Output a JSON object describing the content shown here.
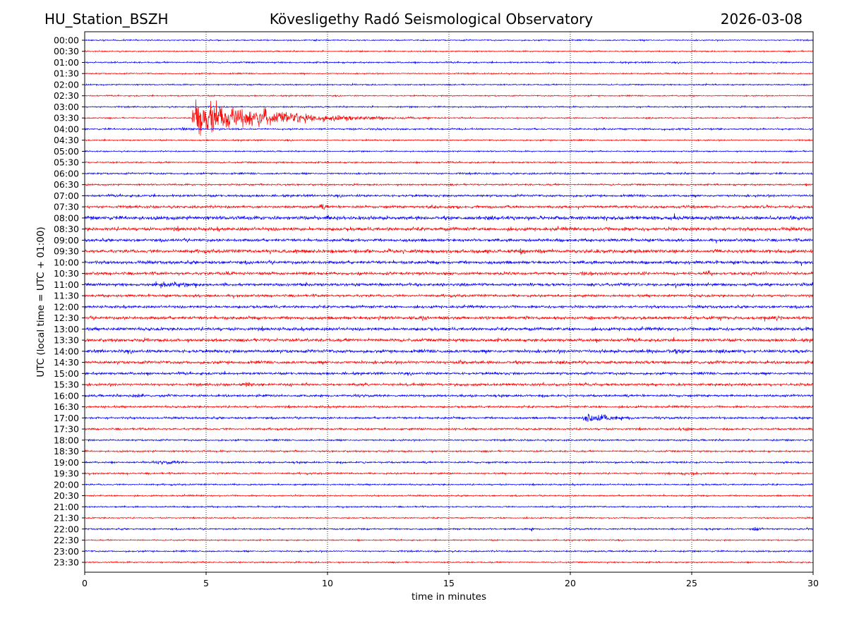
{
  "header": {
    "station": "HU_Station_BSZH",
    "observatory": "Kövesligethy Radó Seismological Observatory",
    "date": "2026-03-08"
  },
  "chart_data": {
    "type": "line",
    "subtype": "helicorder",
    "xlabel": "time in minutes",
    "ylabel": "UTC (local time = UTC + 01:00)",
    "xlim": [
      0,
      30
    ],
    "xticks": [
      "0",
      "5",
      "10",
      "15",
      "20",
      "25",
      "30"
    ],
    "grid": "vertical dotted at 5-minute intervals",
    "colors": [
      "#0000ff",
      "#ff0000"
    ],
    "rows": [
      "00:00",
      "00:30",
      "01:00",
      "01:30",
      "02:00",
      "02:30",
      "03:00",
      "03:30",
      "04:00",
      "04:30",
      "05:00",
      "05:30",
      "06:00",
      "06:30",
      "07:00",
      "07:30",
      "08:00",
      "08:30",
      "09:00",
      "09:30",
      "10:00",
      "10:30",
      "11:00",
      "11:30",
      "12:00",
      "12:30",
      "13:00",
      "13:30",
      "14:00",
      "14:30",
      "15:00",
      "15:30",
      "16:00",
      "16:30",
      "17:00",
      "17:30",
      "18:00",
      "18:30",
      "19:00",
      "19:30",
      "20:00",
      "20:30",
      "21:00",
      "21:30",
      "22:00",
      "22:30",
      "23:00",
      "23:30"
    ],
    "background_noise": [
      1,
      1,
      1.2,
      1,
      1,
      1,
      1.1,
      1,
      1.3,
      1.1,
      1,
      1.2,
      1.4,
      1.3,
      1.8,
      2,
      2.8,
      2.6,
      2.2,
      2.6,
      2.4,
      2.2,
      2.2,
      1.9,
      2,
      2.4,
      2.4,
      2.4,
      2.5,
      2.3,
      2,
      2,
      1.8,
      1.6,
      1.6,
      1.5,
      1.3,
      1.3,
      1.4,
      1.3,
      1.2,
      1.1,
      1.1,
      1,
      1.2,
      1,
      1.2,
      1.1
    ],
    "events": [
      {
        "row": "03:30",
        "start_min": 4.4,
        "amplitude": 48,
        "duration_min": 12,
        "kind": "earthquake"
      },
      {
        "row": "04:00",
        "start_min": 3.5,
        "amplitude": 4,
        "duration_min": 1.2,
        "kind": "burst"
      },
      {
        "row": "07:30",
        "start_min": 9.5,
        "amplitude": 6,
        "duration_min": 0.8,
        "kind": "burst"
      },
      {
        "row": "07:30",
        "start_min": 14.1,
        "amplitude": 6,
        "duration_min": 0.5,
        "kind": "burst"
      },
      {
        "row": "07:30",
        "start_min": 15.2,
        "amplitude": 5,
        "duration_min": 0.4,
        "kind": "burst"
      },
      {
        "row": "08:00",
        "start_min": 9.7,
        "amplitude": 6,
        "duration_min": 0.6,
        "kind": "burst"
      },
      {
        "row": "08:00",
        "start_min": 17.1,
        "amplitude": 5,
        "duration_min": 0.5,
        "kind": "burst"
      },
      {
        "row": "09:30",
        "start_min": 7.3,
        "amplitude": 5,
        "duration_min": 0.8,
        "kind": "burst"
      },
      {
        "row": "09:30",
        "start_min": 8.8,
        "amplitude": 5,
        "duration_min": 0.8,
        "kind": "burst"
      },
      {
        "row": "09:30",
        "start_min": 10.8,
        "amplitude": 5,
        "duration_min": 1,
        "kind": "burst"
      },
      {
        "row": "09:30",
        "start_min": 17.95,
        "amplitude": 14,
        "duration_min": 1.3,
        "kind": "event"
      },
      {
        "row": "10:30",
        "start_min": 5.7,
        "amplitude": 5,
        "duration_min": 0.4,
        "kind": "burst"
      },
      {
        "row": "10:30",
        "start_min": 25.4,
        "amplitude": 8,
        "duration_min": 0.5,
        "kind": "burst"
      },
      {
        "row": "11:00",
        "start_min": 2.5,
        "amplitude": 6,
        "duration_min": 2.4,
        "kind": "burst"
      },
      {
        "row": "12:30",
        "start_min": 12,
        "amplitude": 5,
        "duration_min": 0.3,
        "kind": "burst"
      },
      {
        "row": "12:30",
        "start_min": 13.5,
        "amplitude": 6,
        "duration_min": 0.8,
        "kind": "burst"
      },
      {
        "row": "12:30",
        "start_min": 14.8,
        "amplitude": 12,
        "duration_min": 1.2,
        "kind": "event"
      },
      {
        "row": "12:30",
        "start_min": 27.5,
        "amplitude": 5,
        "duration_min": 1.5,
        "kind": "burst"
      },
      {
        "row": "13:00",
        "start_min": 29.5,
        "amplitude": 5,
        "duration_min": 0.5,
        "kind": "burst"
      },
      {
        "row": "14:00",
        "start_min": 21,
        "amplitude": 4,
        "duration_min": 6,
        "kind": "burst"
      },
      {
        "row": "14:00",
        "start_min": 26.7,
        "amplitude": 6,
        "duration_min": 0.3,
        "kind": "burst"
      },
      {
        "row": "14:30",
        "start_min": 15.3,
        "amplitude": 7,
        "duration_min": 0.5,
        "kind": "burst"
      },
      {
        "row": "15:30",
        "start_min": 6.3,
        "amplitude": 5,
        "duration_min": 0.9,
        "kind": "burst"
      },
      {
        "row": "15:30",
        "start_min": 8.8,
        "amplitude": 4,
        "duration_min": 0.6,
        "kind": "burst"
      },
      {
        "row": "15:30",
        "start_min": 29.1,
        "amplitude": 5,
        "duration_min": 0.6,
        "kind": "burst"
      },
      {
        "row": "16:00",
        "start_min": 1.5,
        "amplitude": 5,
        "duration_min": 1.2,
        "kind": "burst"
      },
      {
        "row": "17:00",
        "start_min": 20.5,
        "amplitude": 16,
        "duration_min": 5,
        "kind": "earthquake"
      },
      {
        "row": "17:30",
        "start_min": 24.5,
        "amplitude": 4,
        "duration_min": 0.6,
        "kind": "burst"
      },
      {
        "row": "19:00",
        "start_min": 2.5,
        "amplitude": 4,
        "duration_min": 2,
        "kind": "burst"
      },
      {
        "row": "19:30",
        "start_min": 24.4,
        "amplitude": 4,
        "duration_min": 1.2,
        "kind": "burst"
      },
      {
        "row": "22:00",
        "start_min": 18.2,
        "amplitude": 4,
        "duration_min": 0.5,
        "kind": "burst"
      },
      {
        "row": "22:00",
        "start_min": 27.4,
        "amplitude": 5,
        "duration_min": 0.6,
        "kind": "burst"
      }
    ]
  }
}
